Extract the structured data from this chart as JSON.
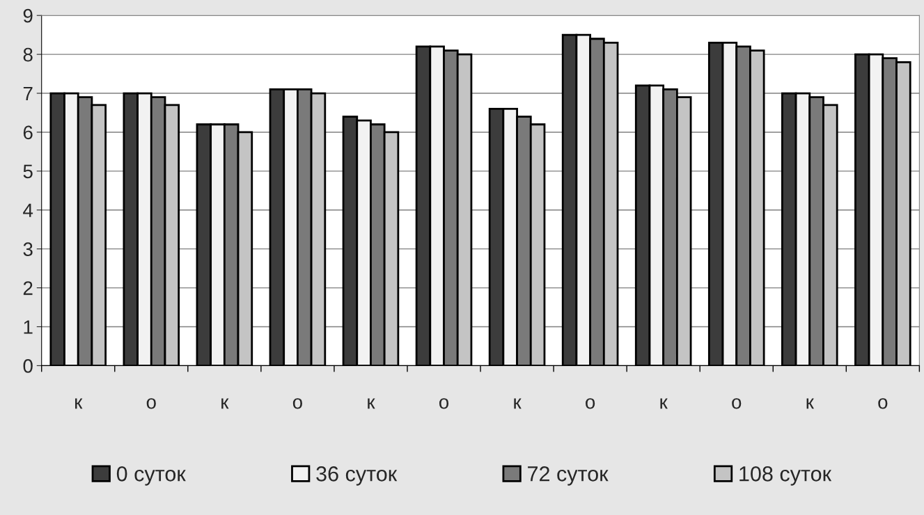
{
  "chart_data": {
    "type": "bar",
    "categories": [
      "к",
      "о",
      "к",
      "о",
      "к",
      "о",
      "к",
      "о",
      "к",
      "о",
      "к",
      "о"
    ],
    "series": [
      {
        "name": "0 суток",
        "color": "#3c3c3c",
        "values": [
          7.0,
          7.0,
          6.2,
          7.1,
          6.4,
          8.2,
          6.6,
          8.5,
          7.2,
          8.3,
          7.0,
          8.0
        ]
      },
      {
        "name": "36 суток",
        "color": "#f2f2f2",
        "values": [
          7.0,
          7.0,
          6.2,
          7.1,
          6.3,
          8.2,
          6.6,
          8.5,
          7.2,
          8.3,
          7.0,
          8.0
        ]
      },
      {
        "name": "72 суток",
        "color": "#7a7a7a",
        "values": [
          6.9,
          6.9,
          6.2,
          7.1,
          6.2,
          8.1,
          6.4,
          8.4,
          7.1,
          8.2,
          6.9,
          7.9
        ]
      },
      {
        "name": "108 суток",
        "color": "#c4c4c4",
        "values": [
          6.7,
          6.7,
          6.0,
          7.0,
          6.0,
          8.0,
          6.2,
          8.3,
          6.9,
          8.1,
          6.7,
          7.8
        ]
      }
    ],
    "ylim": [
      0,
      9
    ],
    "yticks": [
      0,
      1,
      2,
      3,
      4,
      5,
      6,
      7,
      8,
      9
    ],
    "grid": "y",
    "legend": "bottom"
  }
}
